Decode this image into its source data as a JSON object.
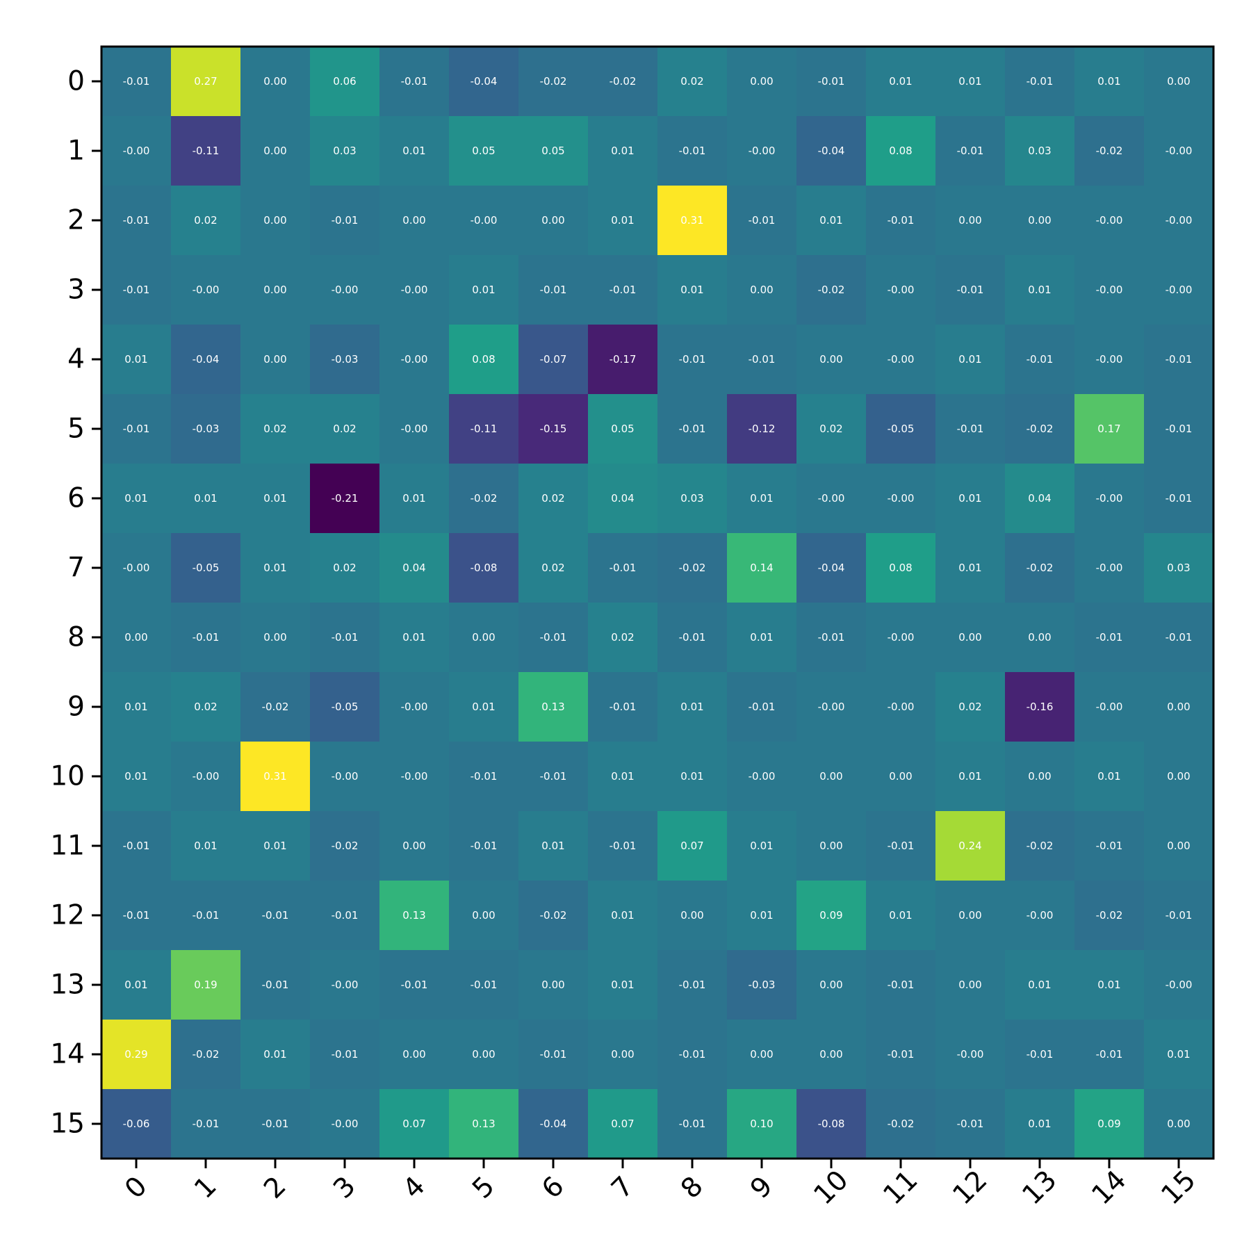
{
  "chart_data": {
    "type": "heatmap",
    "title": "",
    "xlabel": "",
    "ylabel": "",
    "x_categories": [
      "0",
      "1",
      "2",
      "3",
      "4",
      "5",
      "6",
      "7",
      "8",
      "9",
      "10",
      "11",
      "12",
      "13",
      "14",
      "15"
    ],
    "y_categories": [
      "0",
      "1",
      "2",
      "3",
      "4",
      "5",
      "6",
      "7",
      "8",
      "9",
      "10",
      "11",
      "12",
      "13",
      "14",
      "15"
    ],
    "colormap": "viridis",
    "vmin": -0.21,
    "vmax": 0.31,
    "grid": false,
    "x_tick_rotation_deg": 45,
    "values": [
      [
        "-0.01",
        "0.27",
        "0.00",
        "0.06",
        "-0.01",
        "-0.04",
        "-0.02",
        "-0.02",
        "0.02",
        "0.00",
        "-0.01",
        "0.01",
        "0.01",
        "-0.01",
        "0.01",
        "0.00"
      ],
      [
        "-0.00",
        "-0.11",
        "0.00",
        "0.03",
        "0.01",
        "0.05",
        "0.05",
        "0.01",
        "-0.01",
        "-0.00",
        "-0.04",
        "0.08",
        "-0.01",
        "0.03",
        "-0.02",
        "-0.00"
      ],
      [
        "-0.01",
        "0.02",
        "0.00",
        "-0.01",
        "0.00",
        "-0.00",
        "0.00",
        "0.01",
        "0.31",
        "-0.01",
        "0.01",
        "-0.01",
        "0.00",
        "0.00",
        "-0.00",
        "-0.00"
      ],
      [
        "-0.01",
        "-0.00",
        "0.00",
        "-0.00",
        "-0.00",
        "0.01",
        "-0.01",
        "-0.01",
        "0.01",
        "0.00",
        "-0.02",
        "-0.00",
        "-0.01",
        "0.01",
        "-0.00",
        "-0.00"
      ],
      [
        "0.01",
        "-0.04",
        "0.00",
        "-0.03",
        "-0.00",
        "0.08",
        "-0.07",
        "-0.17",
        "-0.01",
        "-0.01",
        "0.00",
        "-0.00",
        "0.01",
        "-0.01",
        "-0.00",
        "-0.01"
      ],
      [
        "-0.01",
        "-0.03",
        "0.02",
        "0.02",
        "-0.00",
        "-0.11",
        "-0.15",
        "0.05",
        "-0.01",
        "-0.12",
        "0.02",
        "-0.05",
        "-0.01",
        "-0.02",
        "0.17",
        "-0.01"
      ],
      [
        "0.01",
        "0.01",
        "0.01",
        "-0.21",
        "0.01",
        "-0.02",
        "0.02",
        "0.04",
        "0.03",
        "0.01",
        "-0.00",
        "-0.00",
        "0.01",
        "0.04",
        "-0.00",
        "-0.01"
      ],
      [
        "-0.00",
        "-0.05",
        "0.01",
        "0.02",
        "0.04",
        "-0.08",
        "0.02",
        "-0.01",
        "-0.02",
        "0.14",
        "-0.04",
        "0.08",
        "0.01",
        "-0.02",
        "-0.00",
        "0.03"
      ],
      [
        "0.00",
        "-0.01",
        "0.00",
        "-0.01",
        "0.01",
        "0.00",
        "-0.01",
        "0.02",
        "-0.01",
        "0.01",
        "-0.01",
        "-0.00",
        "0.00",
        "0.00",
        "-0.01",
        "-0.01"
      ],
      [
        "0.01",
        "0.02",
        "-0.02",
        "-0.05",
        "-0.00",
        "0.01",
        "0.13",
        "-0.01",
        "0.01",
        "-0.01",
        "-0.00",
        "-0.00",
        "0.02",
        "-0.16",
        "-0.00",
        "0.00"
      ],
      [
        "0.01",
        "-0.00",
        "0.31",
        "-0.00",
        "-0.00",
        "-0.01",
        "-0.01",
        "0.01",
        "0.01",
        "-0.00",
        "0.00",
        "0.00",
        "0.01",
        "0.00",
        "0.01",
        "0.00"
      ],
      [
        "-0.01",
        "0.01",
        "0.01",
        "-0.02",
        "0.00",
        "-0.01",
        "0.01",
        "-0.01",
        "0.07",
        "0.01",
        "0.00",
        "-0.01",
        "0.24",
        "-0.02",
        "-0.01",
        "0.00"
      ],
      [
        "-0.01",
        "-0.01",
        "-0.01",
        "-0.01",
        "0.13",
        "0.00",
        "-0.02",
        "0.01",
        "0.00",
        "0.01",
        "0.09",
        "0.01",
        "0.00",
        "-0.00",
        "-0.02",
        "-0.01"
      ],
      [
        "0.01",
        "0.19",
        "-0.01",
        "-0.00",
        "-0.01",
        "-0.01",
        "0.00",
        "0.01",
        "-0.01",
        "-0.03",
        "0.00",
        "-0.01",
        "0.00",
        "0.01",
        "0.01",
        "-0.00"
      ],
      [
        "0.29",
        "-0.02",
        "0.01",
        "-0.01",
        "0.00",
        "0.00",
        "-0.01",
        "0.00",
        "-0.01",
        "0.00",
        "0.00",
        "-0.01",
        "-0.00",
        "-0.01",
        "-0.01",
        "0.01"
      ],
      [
        "-0.06",
        "-0.01",
        "-0.01",
        "-0.00",
        "0.07",
        "0.13",
        "-0.04",
        "0.07",
        "-0.01",
        "0.10",
        "-0.08",
        "-0.02",
        "-0.01",
        "0.01",
        "0.09",
        "0.00"
      ]
    ]
  }
}
